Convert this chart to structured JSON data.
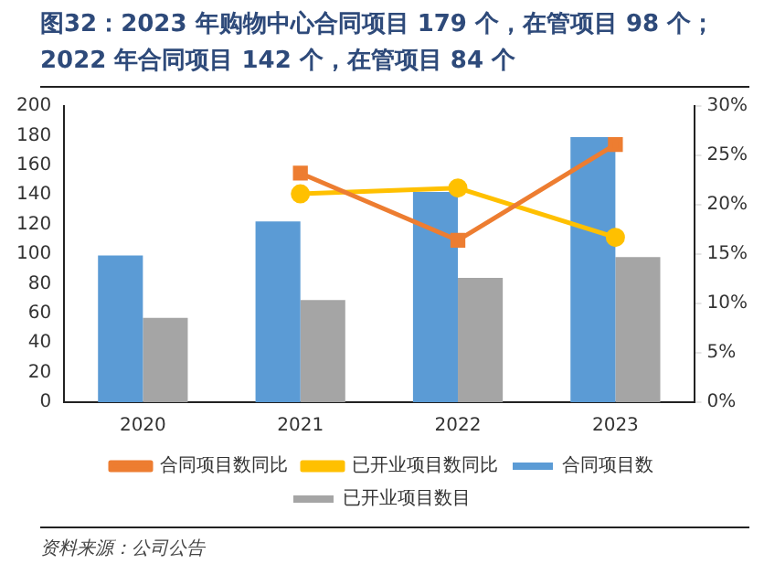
{
  "chart_data": {
    "type": "bar",
    "title": "图32：2023 年购物中心合同项目 179 个，在管项目 98 个；2022 年合同项目 142 个，在管项目 84 个",
    "categories": [
      "2020",
      "2021",
      "2022",
      "2023"
    ],
    "series": [
      {
        "name": "合同项目数",
        "color": "#5b9bd5",
        "values": [
          99,
          122,
          142,
          179
        ]
      },
      {
        "name": "已开业项目数目",
        "color": "#a5a5a5",
        "values": [
          57,
          69,
          84,
          98
        ]
      },
      {
        "name": "合同项目数同比",
        "type": "line",
        "axis": "y2",
        "color": "#ed7d31",
        "marker": "square",
        "values": [
          null,
          23.2,
          16.4,
          26.1
        ]
      },
      {
        "name": "已开业项目数同比",
        "type": "line",
        "axis": "y2",
        "color": "#ffc000",
        "marker": "circle",
        "values": [
          null,
          21.1,
          21.7,
          16.7
        ]
      }
    ],
    "ylim": [
      0,
      200
    ],
    "yticks": [
      0,
      20,
      40,
      60,
      80,
      100,
      120,
      140,
      160,
      180,
      200
    ],
    "y2lim": [
      0,
      30
    ],
    "y2ticks": [
      {
        "value": 0,
        "label": "0%"
      },
      {
        "value": 5,
        "label": "5%"
      },
      {
        "value": 10,
        "label": "10%"
      },
      {
        "value": 15,
        "label": "15%"
      },
      {
        "value": 20,
        "label": "20%"
      },
      {
        "value": 25,
        "label": "25%"
      },
      {
        "value": 30,
        "label": "30%"
      }
    ],
    "grid": false,
    "legend": "bottom",
    "annotations": [
      "资料来源：公司公告"
    ]
  }
}
